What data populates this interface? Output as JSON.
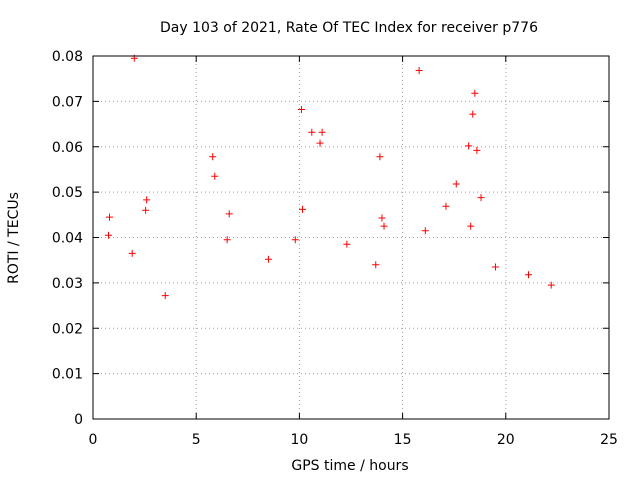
{
  "chart_data": {
    "type": "scatter",
    "title": "Day 103 of 2021, Rate Of TEC Index for receiver p776",
    "xlabel": "GPS time / hours",
    "ylabel": "ROTI / TECUs",
    "xlim": [
      0,
      25
    ],
    "ylim": [
      0,
      0.08
    ],
    "x_ticks": [
      0,
      5,
      10,
      15,
      20,
      25
    ],
    "y_ticks": [
      0,
      0.01,
      0.02,
      0.03,
      0.04,
      0.05,
      0.06,
      0.07,
      0.08
    ],
    "x_tick_labels": [
      "0",
      "5",
      "10",
      "15",
      "20",
      "25"
    ],
    "y_tick_labels": [
      "0",
      "0.01",
      "0.02",
      "0.03",
      "0.04",
      "0.05",
      "0.06",
      "0.07",
      "0.08"
    ],
    "grid": true,
    "marker": "+",
    "color": "#ff0000",
    "series": [
      {
        "x": [
          2.0,
          15.8,
          18.5,
          18.4,
          10.1,
          10.6,
          11.0,
          11.1,
          18.2,
          18.6,
          5.8,
          5.9,
          13.9,
          14.0,
          17.6,
          18.8,
          2.6,
          14.1,
          0.8,
          0.75,
          2.55,
          6.6,
          16.1,
          10.15,
          17.1,
          18.3,
          6.5,
          9.8,
          12.3,
          13.7,
          1.9,
          3.5,
          8.5,
          19.5,
          21.1,
          22.2
        ],
        "y": [
          0.0795,
          0.0768,
          0.0718,
          0.0672,
          0.0682,
          0.0632,
          0.0608,
          0.0632,
          0.0602,
          0.0592,
          0.0578,
          0.0535,
          0.0578,
          0.0443,
          0.0518,
          0.0488,
          0.0483,
          0.0425,
          0.0445,
          0.0405,
          0.046,
          0.0452,
          0.0415,
          0.0462,
          0.0469,
          0.0425,
          0.0395,
          0.0395,
          0.0385,
          0.034,
          0.0365,
          0.0272,
          0.0352,
          0.0335,
          0.0318,
          0.0295
        ]
      }
    ]
  }
}
